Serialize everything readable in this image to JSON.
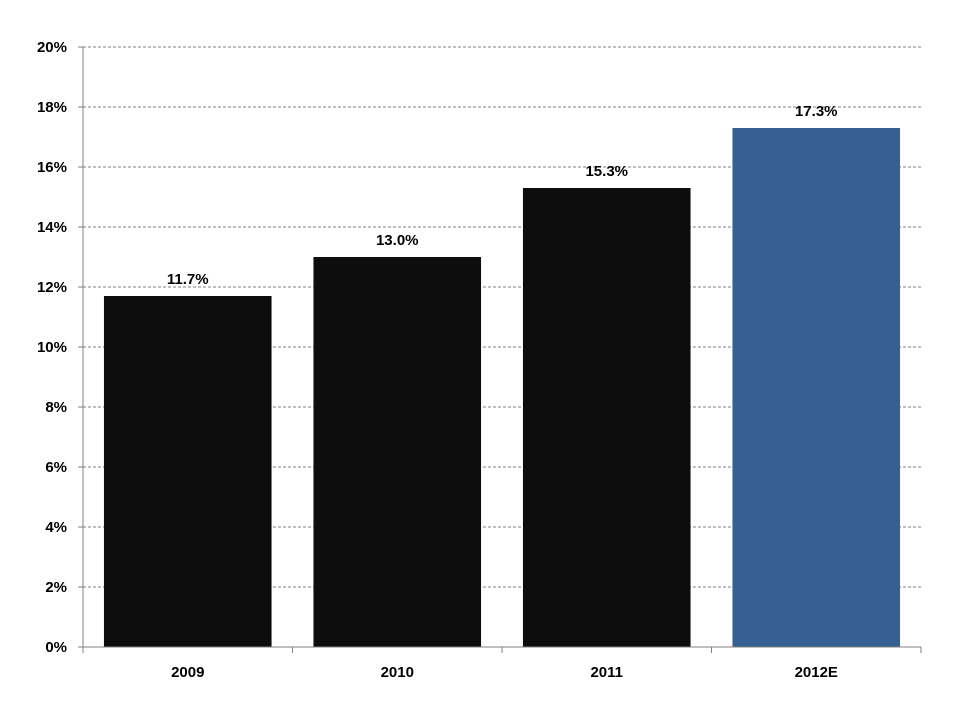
{
  "chart_data": {
    "type": "bar",
    "categories": [
      "2009",
      "2010",
      "2011",
      "2012E"
    ],
    "values": [
      11.7,
      13.0,
      15.3,
      17.3
    ],
    "data_labels": [
      "11.7%",
      "13.0%",
      "15.3%",
      "17.3%"
    ],
    "bar_colors": [
      "#0d0d0d",
      "#0d0d0d",
      "#0d0d0d",
      "#366092"
    ],
    "title": "",
    "xlabel": "",
    "ylabel": "",
    "ylim": [
      0,
      20
    ],
    "y_ticks": [
      0,
      2,
      4,
      6,
      8,
      10,
      12,
      14,
      16,
      18,
      20
    ],
    "y_tick_labels": [
      "0%",
      "2%",
      "4%",
      "6%",
      "8%",
      "10%",
      "12%",
      "14%",
      "16%",
      "18%",
      "20%"
    ],
    "grid": true,
    "legend": "none"
  }
}
